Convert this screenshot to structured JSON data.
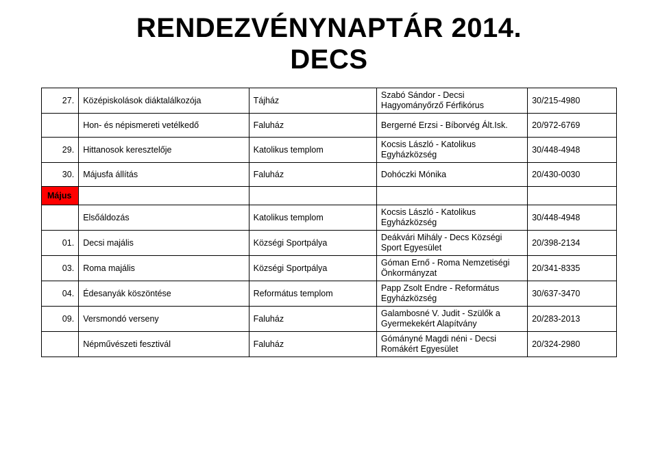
{
  "title": {
    "line1": "RENDEZVÉNYNAPTÁR 2014.",
    "line2": "DECS"
  },
  "month_label": "Május",
  "colors": {
    "month_bg": "#ff0000",
    "border": "#000000",
    "bg": "#ffffff"
  },
  "rows_before": [
    {
      "num": "27.",
      "event": "Középiskolások diáktalálkozója",
      "loc": "Tájház",
      "org": "Szabó Sándor - Decsi Hagyományőrző Férfikórus",
      "phone": "30/215-4980"
    },
    {
      "num": "",
      "event": "Hon- és népismereti vetélkedő",
      "loc": "Faluház",
      "org": "Bergerné Erzsi - Bíborvég Ált.Isk.",
      "phone": "20/972-6769"
    },
    {
      "num": "29.",
      "event": "Hittanosok keresztelője",
      "loc": "Katolikus templom",
      "org": "Kocsis László - Katolikus Egyházközség",
      "phone": "30/448-4948"
    },
    {
      "num": "30.",
      "event": "Májusfa állítás",
      "loc": "Faluház",
      "org": "Dohóczki Mónika",
      "phone": "20/430-0030"
    }
  ],
  "rows_after": [
    {
      "num": "",
      "event": "Elsőáldozás",
      "loc": "Katolikus templom",
      "org": "Kocsis László - Katolikus Egyházközség",
      "phone": "30/448-4948"
    },
    {
      "num": "01.",
      "event": "Decsi majális",
      "loc": "Községi Sportpálya",
      "org": "Deákvári Mihály - Decs Községi Sport Egyesület",
      "phone": "20/398-2134"
    },
    {
      "num": "03.",
      "event": "Roma majális",
      "loc": "Községi Sportpálya",
      "org": "Góman Ernő - Roma Nemzetiségi Önkormányzat",
      "phone": "20/341-8335"
    },
    {
      "num": "04.",
      "event": "Édesanyák köszöntése",
      "loc": "Református templom",
      "org": "Papp Zsolt Endre - Református Egyházközség",
      "phone": "30/637-3470"
    },
    {
      "num": "09.",
      "event": "Versmondó verseny",
      "loc": "Faluház",
      "org": "Galambosné V. Judit - Szülők a Gyermekekért Alapítvány",
      "phone": "20/283-2013"
    },
    {
      "num": "",
      "event": "Népművészeti fesztivál",
      "loc": "Faluház",
      "org": "Gómányné Magdi néni - Decsi Romákért Egyesület",
      "phone": "20/324-2980"
    }
  ]
}
